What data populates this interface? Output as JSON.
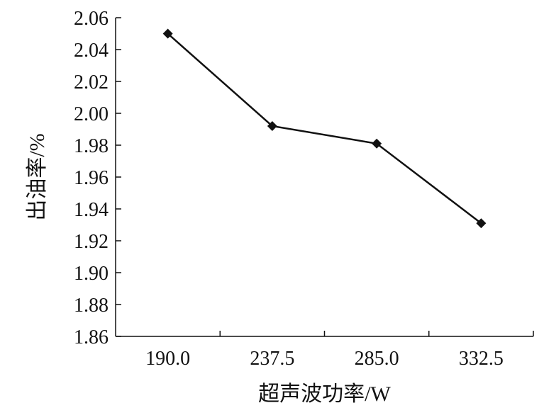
{
  "chart_data": {
    "type": "line",
    "categories": [
      "190.0",
      "237.5",
      "285.0",
      "332.5"
    ],
    "series": [
      {
        "values": [
          2.05,
          1.992,
          1.981,
          1.931
        ]
      }
    ],
    "xlabel": "超声波功率/W",
    "ylabel": "出油率/%",
    "ylim": [
      1.86,
      2.06
    ],
    "yticks": [
      "1.86",
      "1.88",
      "1.90",
      "1.92",
      "1.94",
      "1.96",
      "1.98",
      "2.00",
      "2.02",
      "2.04",
      "2.06"
    ],
    "grid": false,
    "marker": "diamond",
    "line_color": "#111111"
  }
}
